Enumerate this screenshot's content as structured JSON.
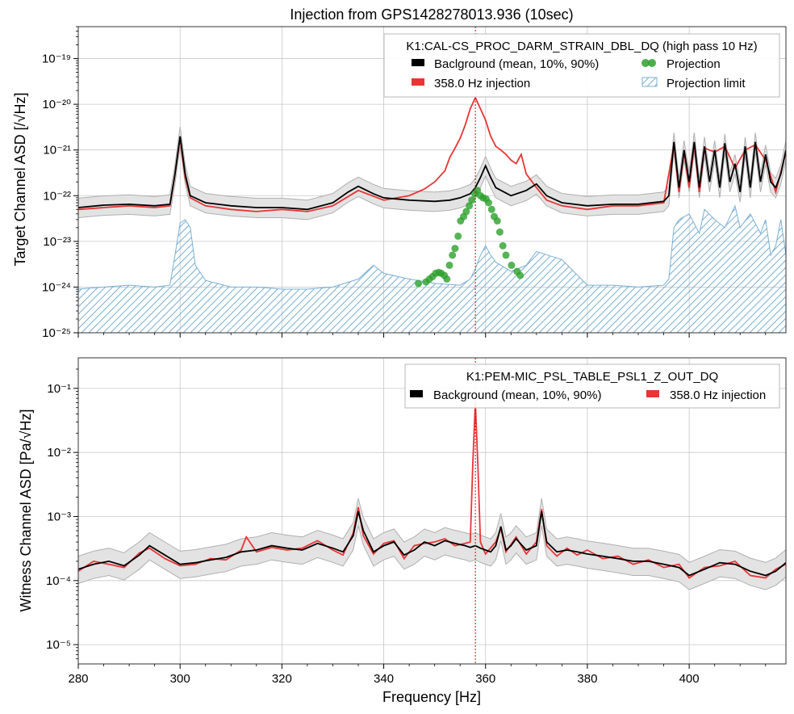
{
  "chart_data": {
    "type": "line",
    "title": "Injection from GPS1428278013.936 (10sec)",
    "xlabel": "Frequency [Hz]",
    "xlim": [
      280,
      419
    ],
    "xticks": [
      280,
      300,
      320,
      340,
      360,
      380,
      400
    ],
    "injection_frequency": 358.0,
    "panels": [
      {
        "id": "target",
        "ylabel": "Target Channel ASD [/√Hz]",
        "yscale": "log",
        "ylim": [
          1e-25,
          5e-19
        ],
        "yticks": [
          1e-25,
          1e-24,
          1e-23,
          1e-22,
          1e-21,
          1e-20,
          1e-19
        ],
        "yticklabels": [
          "10⁻²⁵",
          "10⁻²⁴",
          "10⁻²³",
          "10⁻²²",
          "10⁻²¹",
          "10⁻²⁰",
          "10⁻¹⁹"
        ],
        "legend": {
          "title": "K1:CAL-CS_PROC_DARM_STRAIN_DBL_DQ (high pass 10 Hz)",
          "location": "upper right",
          "entries": [
            "Baclground (mean, 10%, 90%)",
            "358.0 Hz injection",
            "Projection",
            "Projection limit"
          ]
        },
        "background_mean": {
          "x": [
            280,
            285,
            290,
            295,
            298,
            299,
            300,
            301,
            302,
            305,
            310,
            315,
            320,
            325,
            330,
            333,
            335,
            338,
            340,
            345,
            350,
            353,
            355,
            357,
            358,
            359,
            360,
            361,
            362,
            365,
            368,
            370,
            372,
            375,
            380,
            385,
            390,
            395,
            396,
            397,
            398,
            399,
            400,
            401,
            402,
            403,
            404,
            405,
            406,
            407,
            408,
            409,
            410,
            411,
            412,
            413,
            414,
            415,
            416,
            417,
            418,
            419
          ],
          "y": [
            5.5e-23,
            6.2e-23,
            6.5e-23,
            6e-23,
            6.5e-23,
            3e-22,
            2e-21,
            3e-22,
            1e-22,
            7e-23,
            6e-23,
            5.5e-23,
            5.5e-23,
            5e-23,
            7e-23,
            1.2e-22,
            1.6e-22,
            1.1e-22,
            9e-23,
            8e-23,
            7.5e-23,
            8e-23,
            9e-23,
            1.1e-22,
            1.5e-22,
            2.5e-22,
            4.5e-22,
            2.5e-22,
            1.5e-22,
            1e-22,
            1.3e-22,
            1.8e-22,
            1e-22,
            7e-23,
            6e-23,
            6.5e-23,
            6.5e-23,
            7.5e-23,
            1e-22,
            1.5e-21,
            1.5e-22,
            1e-21,
            2e-22,
            1.5e-21,
            1.5e-22,
            1.2e-21,
            2e-22,
            1e-21,
            1.5e-22,
            1.4e-21,
            2e-22,
            5e-22,
            1.2e-22,
            1.2e-21,
            1.5e-22,
            1.5e-21,
            2e-22,
            8e-22,
            2e-22,
            1.5e-22,
            3e-22,
            1e-21
          ]
        },
        "background_p90_factor": 1.6,
        "background_p10_factor": 0.6,
        "injection": {
          "x": [
            280,
            285,
            290,
            295,
            298,
            299,
            300,
            301,
            302,
            305,
            310,
            315,
            320,
            325,
            330,
            335,
            340,
            345,
            348,
            350,
            352,
            353,
            354,
            355,
            356,
            357,
            358,
            359,
            360,
            361,
            362,
            363,
            364,
            365,
            366,
            367,
            368,
            370,
            372,
            375,
            380,
            385,
            390,
            395,
            397,
            398,
            399,
            400,
            401,
            402,
            403,
            405,
            407,
            409,
            411,
            413,
            415,
            417,
            419
          ],
          "y": [
            5e-23,
            5.5e-23,
            6e-23,
            5.5e-23,
            6e-23,
            3e-22,
            1.8e-21,
            2.5e-22,
            9e-23,
            6e-23,
            5e-23,
            4.5e-23,
            5e-23,
            4.5e-23,
            6e-23,
            1.3e-22,
            8e-23,
            1e-22,
            1.4e-22,
            2e-22,
            3.5e-22,
            7e-22,
            1.1e-21,
            1.8e-21,
            3.5e-21,
            8e-21,
            1.4e-20,
            8e-21,
            4.5e-21,
            2e-21,
            1.2e-21,
            1e-21,
            8e-22,
            6e-22,
            5e-22,
            8e-22,
            3e-22,
            1.5e-22,
            8e-23,
            6e-23,
            5e-23,
            6e-23,
            6e-23,
            7e-23,
            1.3e-21,
            1.2e-22,
            9e-22,
            1.5e-22,
            1.3e-21,
            1.2e-22,
            1.1e-21,
            9e-22,
            1.2e-21,
            4e-22,
            1e-21,
            1.3e-21,
            6e-22,
            1.2e-22,
            9e-22
          ]
        },
        "projection": {
          "x": [
            346.8,
            348.3,
            349.0,
            349.6,
            350.2,
            350.8,
            351.3,
            351.9,
            352.4,
            352.9,
            353.5,
            354.0,
            354.6,
            355.1,
            355.7,
            356.2,
            356.8,
            357.3,
            357.9,
            358.4,
            359.0,
            359.5,
            360.1,
            360.6,
            361.2,
            361.7,
            362.3,
            362.8,
            363.4,
            364.0,
            365.1,
            366.2,
            366.8
          ],
          "y": [
            1.2e-24,
            1.3e-24,
            1.5e-24,
            1.7e-24,
            2e-24,
            2.1e-24,
            2e-24,
            1.8e-24,
            1.5e-24,
            3e-24,
            5e-24,
            7e-24,
            1.3e-23,
            2.8e-23,
            3.5e-23,
            4.5e-23,
            6e-23,
            8e-23,
            1.1e-22,
            1.3e-22,
            1e-22,
            9e-23,
            8.5e-23,
            7e-23,
            5e-23,
            3.5e-23,
            2.8e-23,
            1.6e-23,
            8e-24,
            5e-24,
            3e-24,
            2.2e-24,
            1.8e-24
          ]
        },
        "projection_limit": {
          "x": [
            280,
            285,
            290,
            295,
            298,
            299,
            300,
            301,
            302,
            303,
            305,
            310,
            315,
            320,
            325,
            330,
            335,
            338,
            340,
            345,
            350,
            355,
            357,
            358,
            359,
            360,
            361,
            362,
            365,
            368,
            370,
            375,
            380,
            385,
            390,
            395,
            396,
            397,
            398,
            400,
            402,
            403,
            405,
            407,
            409,
            410,
            412,
            414,
            415,
            416,
            417,
            418,
            419
          ],
          "y": [
            9e-25,
            1e-24,
            1.1e-24,
            1e-24,
            1.1e-24,
            5e-24,
            2.5e-23,
            3e-23,
            2e-23,
            3e-24,
            1.4e-24,
            1e-24,
            1e-24,
            9e-25,
            9e-25,
            1e-24,
            1.5e-24,
            3e-24,
            2e-24,
            1.5e-24,
            1.2e-24,
            1.1e-24,
            1.5e-24,
            2.5e-24,
            5e-24,
            8e-24,
            5e-24,
            3.5e-24,
            2.2e-24,
            3e-24,
            6e-24,
            4e-24,
            1.1e-24,
            1.1e-24,
            1e-24,
            1.1e-24,
            1.5e-24,
            2e-23,
            3e-23,
            4e-23,
            1.5e-23,
            5e-23,
            3e-23,
            2e-23,
            6e-23,
            2e-23,
            4e-23,
            1.5e-23,
            3e-23,
            5e-24,
            8e-24,
            3e-23,
            5e-24
          ]
        }
      },
      {
        "id": "witness",
        "ylabel": "Witness Channel ASD [Pa/√Hz]",
        "yscale": "log",
        "ylim": [
          5e-06,
          0.3
        ],
        "yticks": [
          1e-05,
          0.0001,
          0.001,
          0.01,
          0.1
        ],
        "yticklabels": [
          "10⁻⁵",
          "10⁻⁴",
          "10⁻³",
          "10⁻²",
          "10⁻¹"
        ],
        "legend": {
          "title": "K1:PEM-MIC_PSL_TABLE_PSL1_Z_OUT_DQ",
          "location": "upper right",
          "entries": [
            "Background (mean, 10%, 90%)",
            "358.0 Hz injection"
          ]
        },
        "background_mean": {
          "x": [
            280,
            283,
            286,
            289,
            292,
            294,
            297,
            300,
            303,
            306,
            309,
            312,
            315,
            318,
            321,
            324,
            327,
            330,
            332,
            334,
            335,
            336,
            338,
            340,
            342,
            344,
            346,
            348,
            350,
            352,
            354,
            356,
            357,
            358,
            359,
            360,
            361,
            362,
            363,
            364,
            365,
            366,
            368,
            370,
            371,
            372,
            374,
            376,
            378,
            380,
            383,
            386,
            389,
            392,
            395,
            398,
            400,
            403,
            406,
            409,
            412,
            415,
            417,
            419
          ],
          "y": [
            0.00015,
            0.00018,
            0.0002,
            0.00017,
            0.00025,
            0.00035,
            0.00025,
            0.00018,
            0.00019,
            0.00021,
            0.00023,
            0.00028,
            0.0003,
            0.00035,
            0.00032,
            0.0003,
            0.00038,
            0.00032,
            0.00028,
            0.0005,
            0.0012,
            0.0006,
            0.00028,
            0.00035,
            0.0004,
            0.00025,
            0.0003,
            0.0004,
            0.00035,
            0.00042,
            0.00038,
            0.00035,
            0.00033,
            0.00035,
            0.00032,
            0.0003,
            0.00028,
            0.00035,
            0.0007,
            0.0003,
            0.00035,
            0.00045,
            0.0003,
            0.00035,
            0.0012,
            0.0004,
            0.00028,
            0.0003,
            0.00028,
            0.00026,
            0.00024,
            0.00022,
            0.0002,
            0.0002,
            0.00018,
            0.00016,
            0.00012,
            0.00015,
            0.00019,
            0.00018,
            0.00014,
            0.00012,
            0.00014,
            0.00019
          ]
        },
        "background_p90_factor": 1.6,
        "background_p10_factor": 0.6,
        "injection": {
          "x": [
            280,
            283,
            286,
            289,
            292,
            294,
            297,
            300,
            303,
            306,
            309,
            312,
            313,
            315,
            318,
            321,
            324,
            327,
            330,
            332,
            334,
            335,
            336,
            338,
            340,
            342,
            344,
            346,
            348,
            350,
            352,
            354,
            356,
            357,
            357.5,
            358,
            358.5,
            359,
            360,
            362,
            363,
            364,
            366,
            368,
            370,
            371,
            372,
            374,
            376,
            378,
            380,
            383,
            386,
            389,
            392,
            395,
            398,
            400,
            403,
            406,
            409,
            412,
            415,
            417,
            419
          ],
          "y": [
            0.00014,
            0.0002,
            0.00018,
            0.00016,
            0.00027,
            0.00032,
            0.00022,
            0.00017,
            0.00018,
            0.00022,
            0.00021,
            0.0003,
            0.00048,
            0.00028,
            0.00033,
            0.0003,
            0.00032,
            0.00042,
            0.0003,
            0.00025,
            0.00055,
            0.0014,
            0.0005,
            0.00026,
            0.00038,
            0.00042,
            0.00022,
            0.00035,
            0.00038,
            0.0004,
            0.00045,
            0.00035,
            0.00038,
            0.0004,
            0.007,
            0.06,
            0.006,
            0.0004,
            0.00026,
            0.0004,
            0.00065,
            0.00028,
            0.00048,
            0.00026,
            0.0004,
            0.0013,
            0.00035,
            0.00024,
            0.00032,
            0.00025,
            0.0003,
            0.00022,
            0.00024,
            0.00018,
            0.00021,
            0.00016,
            0.00018,
            0.00011,
            0.00016,
            0.00017,
            0.0002,
            0.00012,
            0.00011,
            0.00015,
            0.00018
          ]
        }
      }
    ]
  },
  "colors": {
    "background_mean": "#000000",
    "background_band": "#e3e3e3",
    "band_edge": "#b0b0b0",
    "injection": "#e83535",
    "projection": "#2ca02c",
    "projection_limit": "#7ab0d4",
    "injection_marker": "#e0000f"
  }
}
